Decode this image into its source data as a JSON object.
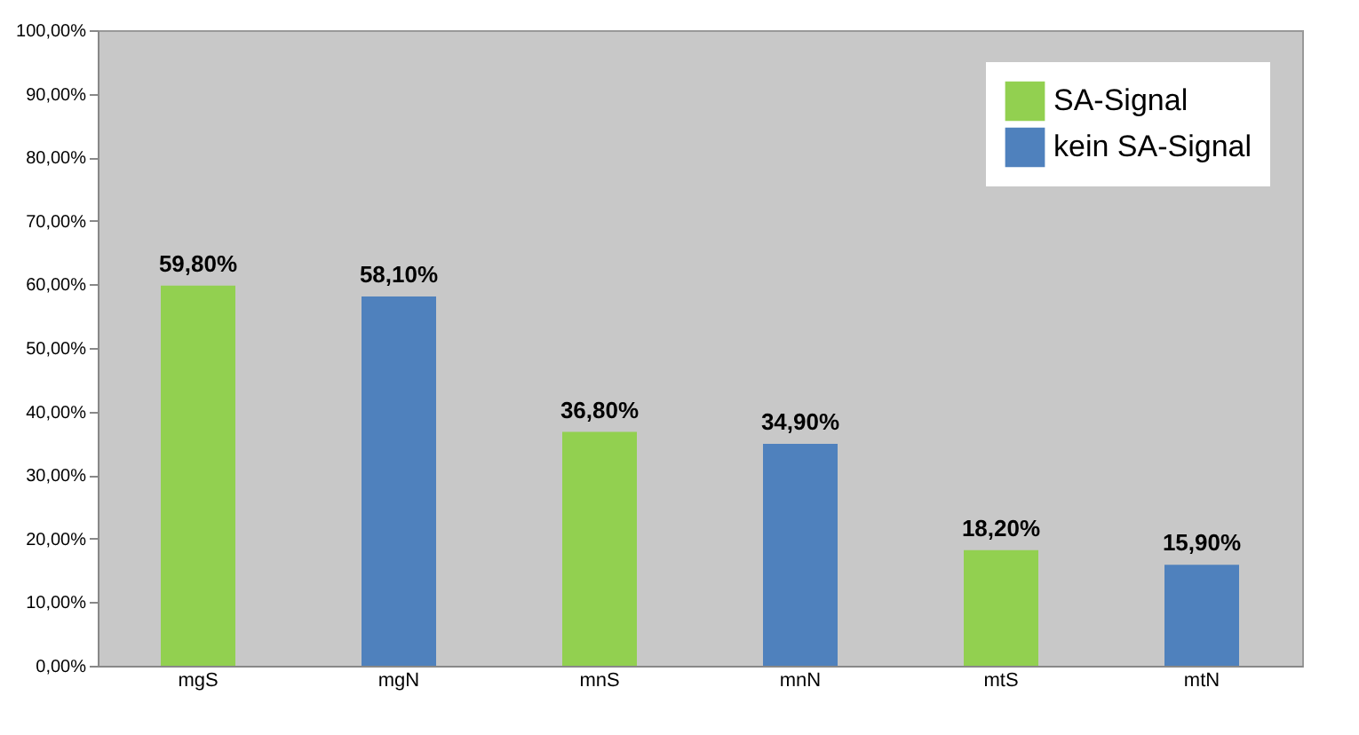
{
  "chart_data": {
    "type": "bar",
    "categories": [
      "mgS",
      "mgN",
      "mnS",
      "mnN",
      "mtS",
      "mtN"
    ],
    "series": [
      {
        "name": "SA-Signal",
        "color": "#92d050",
        "values": [
          59.8,
          null,
          36.8,
          null,
          18.2,
          null
        ],
        "value_labels": [
          "59,80%",
          null,
          "36,80%",
          null,
          "18,20%",
          null
        ]
      },
      {
        "name": "kein SA-Signal",
        "color": "#4f81bd",
        "values": [
          null,
          58.1,
          null,
          34.9,
          null,
          15.9
        ],
        "value_labels": [
          null,
          "58,10%",
          null,
          "34,90%",
          null,
          "15,90%"
        ]
      }
    ],
    "ylim": [
      0,
      100
    ],
    "yticks": [
      {
        "value": 0,
        "label": "0,00%"
      },
      {
        "value": 10,
        "label": "10,00%"
      },
      {
        "value": 20,
        "label": "20,00%"
      },
      {
        "value": 30,
        "label": "30,00%"
      },
      {
        "value": 40,
        "label": "40,00%"
      },
      {
        "value": 50,
        "label": "50,00%"
      },
      {
        "value": 60,
        "label": "60,00%"
      },
      {
        "value": 70,
        "label": "70,00%"
      },
      {
        "value": 80,
        "label": "80,00%"
      },
      {
        "value": 90,
        "label": "90,00%"
      },
      {
        "value": 100,
        "label": "100,00%"
      }
    ],
    "grid": false,
    "legend": "top right"
  }
}
